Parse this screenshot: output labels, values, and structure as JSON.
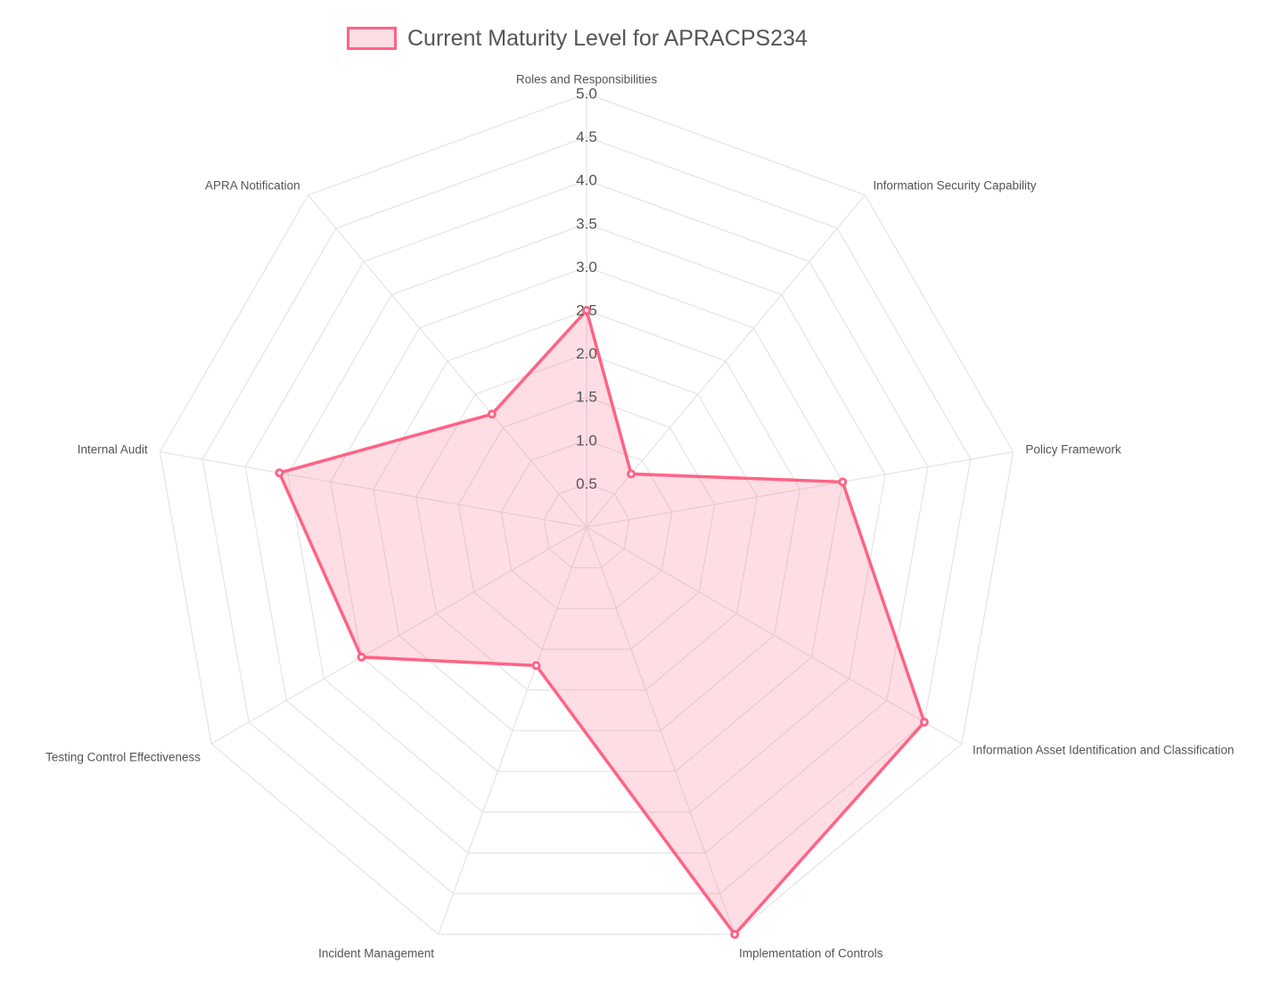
{
  "chart_data": {
    "type": "radar",
    "labels": [
      "Roles and Responsibilities",
      "Information Security Capability",
      "Policy Framework",
      "Information Asset Identification and Classification",
      "Implementation of Controls",
      "Incident Management",
      "Testing Control Effectiveness",
      "Internal Audit",
      "APRA Notification"
    ],
    "series": [
      {
        "name": "Current Maturity Level for APRACPS234",
        "values": [
          2.5,
          0.8,
          3.0,
          4.5,
          5.0,
          1.7,
          3.0,
          3.6,
          1.7
        ]
      }
    ],
    "r_ticks": [
      "0.5",
      "1.0",
      "1.5",
      "2.0",
      "2.5",
      "3.0",
      "3.5",
      "4.0",
      "4.5",
      "5.0"
    ],
    "r_range": [
      0,
      5
    ],
    "colors": {
      "line": "#ff6384",
      "fill": "rgba(255, 99, 132, 0.22)",
      "grid": "#e4e4e4",
      "label": "#555555"
    },
    "legend_position": "top"
  }
}
